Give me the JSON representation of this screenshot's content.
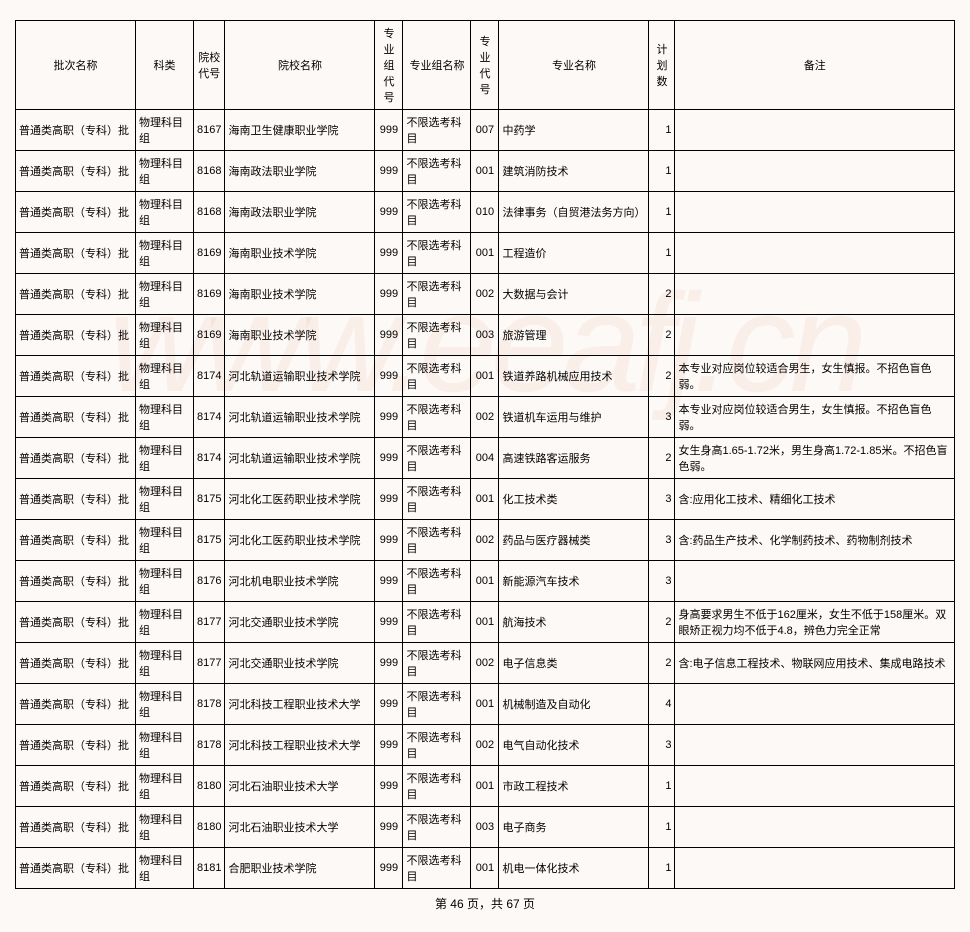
{
  "headers": {
    "batch": "批次名称",
    "subject": "科类",
    "schoolCode": "院校代号",
    "schoolName": "院校名称",
    "groupCode": "专业组代号",
    "groupName": "专业组名称",
    "majorCode": "专业代号",
    "majorName": "专业名称",
    "plan": "计划数",
    "remark": "备注"
  },
  "rows": [
    {
      "batch": "普通类高职（专科）批",
      "subject": "物理科目组",
      "schoolCode": "8167",
      "schoolName": "海南卫生健康职业学院",
      "groupCode": "999",
      "groupName": "不限选考科目",
      "majorCode": "007",
      "majorName": "中药学",
      "plan": "1",
      "remark": ""
    },
    {
      "batch": "普通类高职（专科）批",
      "subject": "物理科目组",
      "schoolCode": "8168",
      "schoolName": "海南政法职业学院",
      "groupCode": "999",
      "groupName": "不限选考科目",
      "majorCode": "001",
      "majorName": "建筑消防技术",
      "plan": "1",
      "remark": ""
    },
    {
      "batch": "普通类高职（专科）批",
      "subject": "物理科目组",
      "schoolCode": "8168",
      "schoolName": "海南政法职业学院",
      "groupCode": "999",
      "groupName": "不限选考科目",
      "majorCode": "010",
      "majorName": "法律事务（自贸港法务方向）",
      "plan": "1",
      "remark": ""
    },
    {
      "batch": "普通类高职（专科）批",
      "subject": "物理科目组",
      "schoolCode": "8169",
      "schoolName": "海南职业技术学院",
      "groupCode": "999",
      "groupName": "不限选考科目",
      "majorCode": "001",
      "majorName": "工程造价",
      "plan": "1",
      "remark": ""
    },
    {
      "batch": "普通类高职（专科）批",
      "subject": "物理科目组",
      "schoolCode": "8169",
      "schoolName": "海南职业技术学院",
      "groupCode": "999",
      "groupName": "不限选考科目",
      "majorCode": "002",
      "majorName": "大数据与会计",
      "plan": "2",
      "remark": ""
    },
    {
      "batch": "普通类高职（专科）批",
      "subject": "物理科目组",
      "schoolCode": "8169",
      "schoolName": "海南职业技术学院",
      "groupCode": "999",
      "groupName": "不限选考科目",
      "majorCode": "003",
      "majorName": "旅游管理",
      "plan": "2",
      "remark": ""
    },
    {
      "batch": "普通类高职（专科）批",
      "subject": "物理科目组",
      "schoolCode": "8174",
      "schoolName": "河北轨道运输职业技术学院",
      "groupCode": "999",
      "groupName": "不限选考科目",
      "majorCode": "001",
      "majorName": "铁道养路机械应用技术",
      "plan": "2",
      "remark": "本专业对应岗位较适合男生，女生慎报。不招色盲色弱。"
    },
    {
      "batch": "普通类高职（专科）批",
      "subject": "物理科目组",
      "schoolCode": "8174",
      "schoolName": "河北轨道运输职业技术学院",
      "groupCode": "999",
      "groupName": "不限选考科目",
      "majorCode": "002",
      "majorName": "铁道机车运用与维护",
      "plan": "3",
      "remark": "本专业对应岗位较适合男生，女生慎报。不招色盲色弱。"
    },
    {
      "batch": "普通类高职（专科）批",
      "subject": "物理科目组",
      "schoolCode": "8174",
      "schoolName": "河北轨道运输职业技术学院",
      "groupCode": "999",
      "groupName": "不限选考科目",
      "majorCode": "004",
      "majorName": "高速铁路客运服务",
      "plan": "2",
      "remark": "女生身高1.65-1.72米，男生身高1.72-1.85米。不招色盲色弱。"
    },
    {
      "batch": "普通类高职（专科）批",
      "subject": "物理科目组",
      "schoolCode": "8175",
      "schoolName": "河北化工医药职业技术学院",
      "groupCode": "999",
      "groupName": "不限选考科目",
      "majorCode": "001",
      "majorName": "化工技术类",
      "plan": "3",
      "remark": "含:应用化工技术、精细化工技术"
    },
    {
      "batch": "普通类高职（专科）批",
      "subject": "物理科目组",
      "schoolCode": "8175",
      "schoolName": "河北化工医药职业技术学院",
      "groupCode": "999",
      "groupName": "不限选考科目",
      "majorCode": "002",
      "majorName": "药品与医疗器械类",
      "plan": "3",
      "remark": "含:药品生产技术、化学制药技术、药物制剂技术"
    },
    {
      "batch": "普通类高职（专科）批",
      "subject": "物理科目组",
      "schoolCode": "8176",
      "schoolName": "河北机电职业技术学院",
      "groupCode": "999",
      "groupName": "不限选考科目",
      "majorCode": "001",
      "majorName": "新能源汽车技术",
      "plan": "3",
      "remark": ""
    },
    {
      "batch": "普通类高职（专科）批",
      "subject": "物理科目组",
      "schoolCode": "8177",
      "schoolName": "河北交通职业技术学院",
      "groupCode": "999",
      "groupName": "不限选考科目",
      "majorCode": "001",
      "majorName": "航海技术",
      "plan": "2",
      "remark": "身高要求男生不低于162厘米，女生不低于158厘米。双眼矫正视力均不低于4.8，辨色力完全正常"
    },
    {
      "batch": "普通类高职（专科）批",
      "subject": "物理科目组",
      "schoolCode": "8177",
      "schoolName": "河北交通职业技术学院",
      "groupCode": "999",
      "groupName": "不限选考科目",
      "majorCode": "002",
      "majorName": "电子信息类",
      "plan": "2",
      "remark": "含:电子信息工程技术、物联网应用技术、集成电路技术"
    },
    {
      "batch": "普通类高职（专科）批",
      "subject": "物理科目组",
      "schoolCode": "8178",
      "schoolName": "河北科技工程职业技术大学",
      "groupCode": "999",
      "groupName": "不限选考科目",
      "majorCode": "001",
      "majorName": "机械制造及自动化",
      "plan": "4",
      "remark": ""
    },
    {
      "batch": "普通类高职（专科）批",
      "subject": "物理科目组",
      "schoolCode": "8178",
      "schoolName": "河北科技工程职业技术大学",
      "groupCode": "999",
      "groupName": "不限选考科目",
      "majorCode": "002",
      "majorName": "电气自动化技术",
      "plan": "3",
      "remark": ""
    },
    {
      "batch": "普通类高职（专科）批",
      "subject": "物理科目组",
      "schoolCode": "8180",
      "schoolName": "河北石油职业技术大学",
      "groupCode": "999",
      "groupName": "不限选考科目",
      "majorCode": "001",
      "majorName": "市政工程技术",
      "plan": "1",
      "remark": ""
    },
    {
      "batch": "普通类高职（专科）批",
      "subject": "物理科目组",
      "schoolCode": "8180",
      "schoolName": "河北石油职业技术大学",
      "groupCode": "999",
      "groupName": "不限选考科目",
      "majorCode": "003",
      "majorName": "电子商务",
      "plan": "1",
      "remark": ""
    },
    {
      "batch": "普通类高职（专科）批",
      "subject": "物理科目组",
      "schoolCode": "8181",
      "schoolName": "合肥职业技术学院",
      "groupCode": "999",
      "groupName": "不限选考科目",
      "majorCode": "001",
      "majorName": "机电一体化技术",
      "plan": "1",
      "remark": ""
    }
  ],
  "pager": {
    "current": "46",
    "total": "67",
    "prefix": "第 ",
    "mid": " 页，共 ",
    "suffix": " 页"
  }
}
